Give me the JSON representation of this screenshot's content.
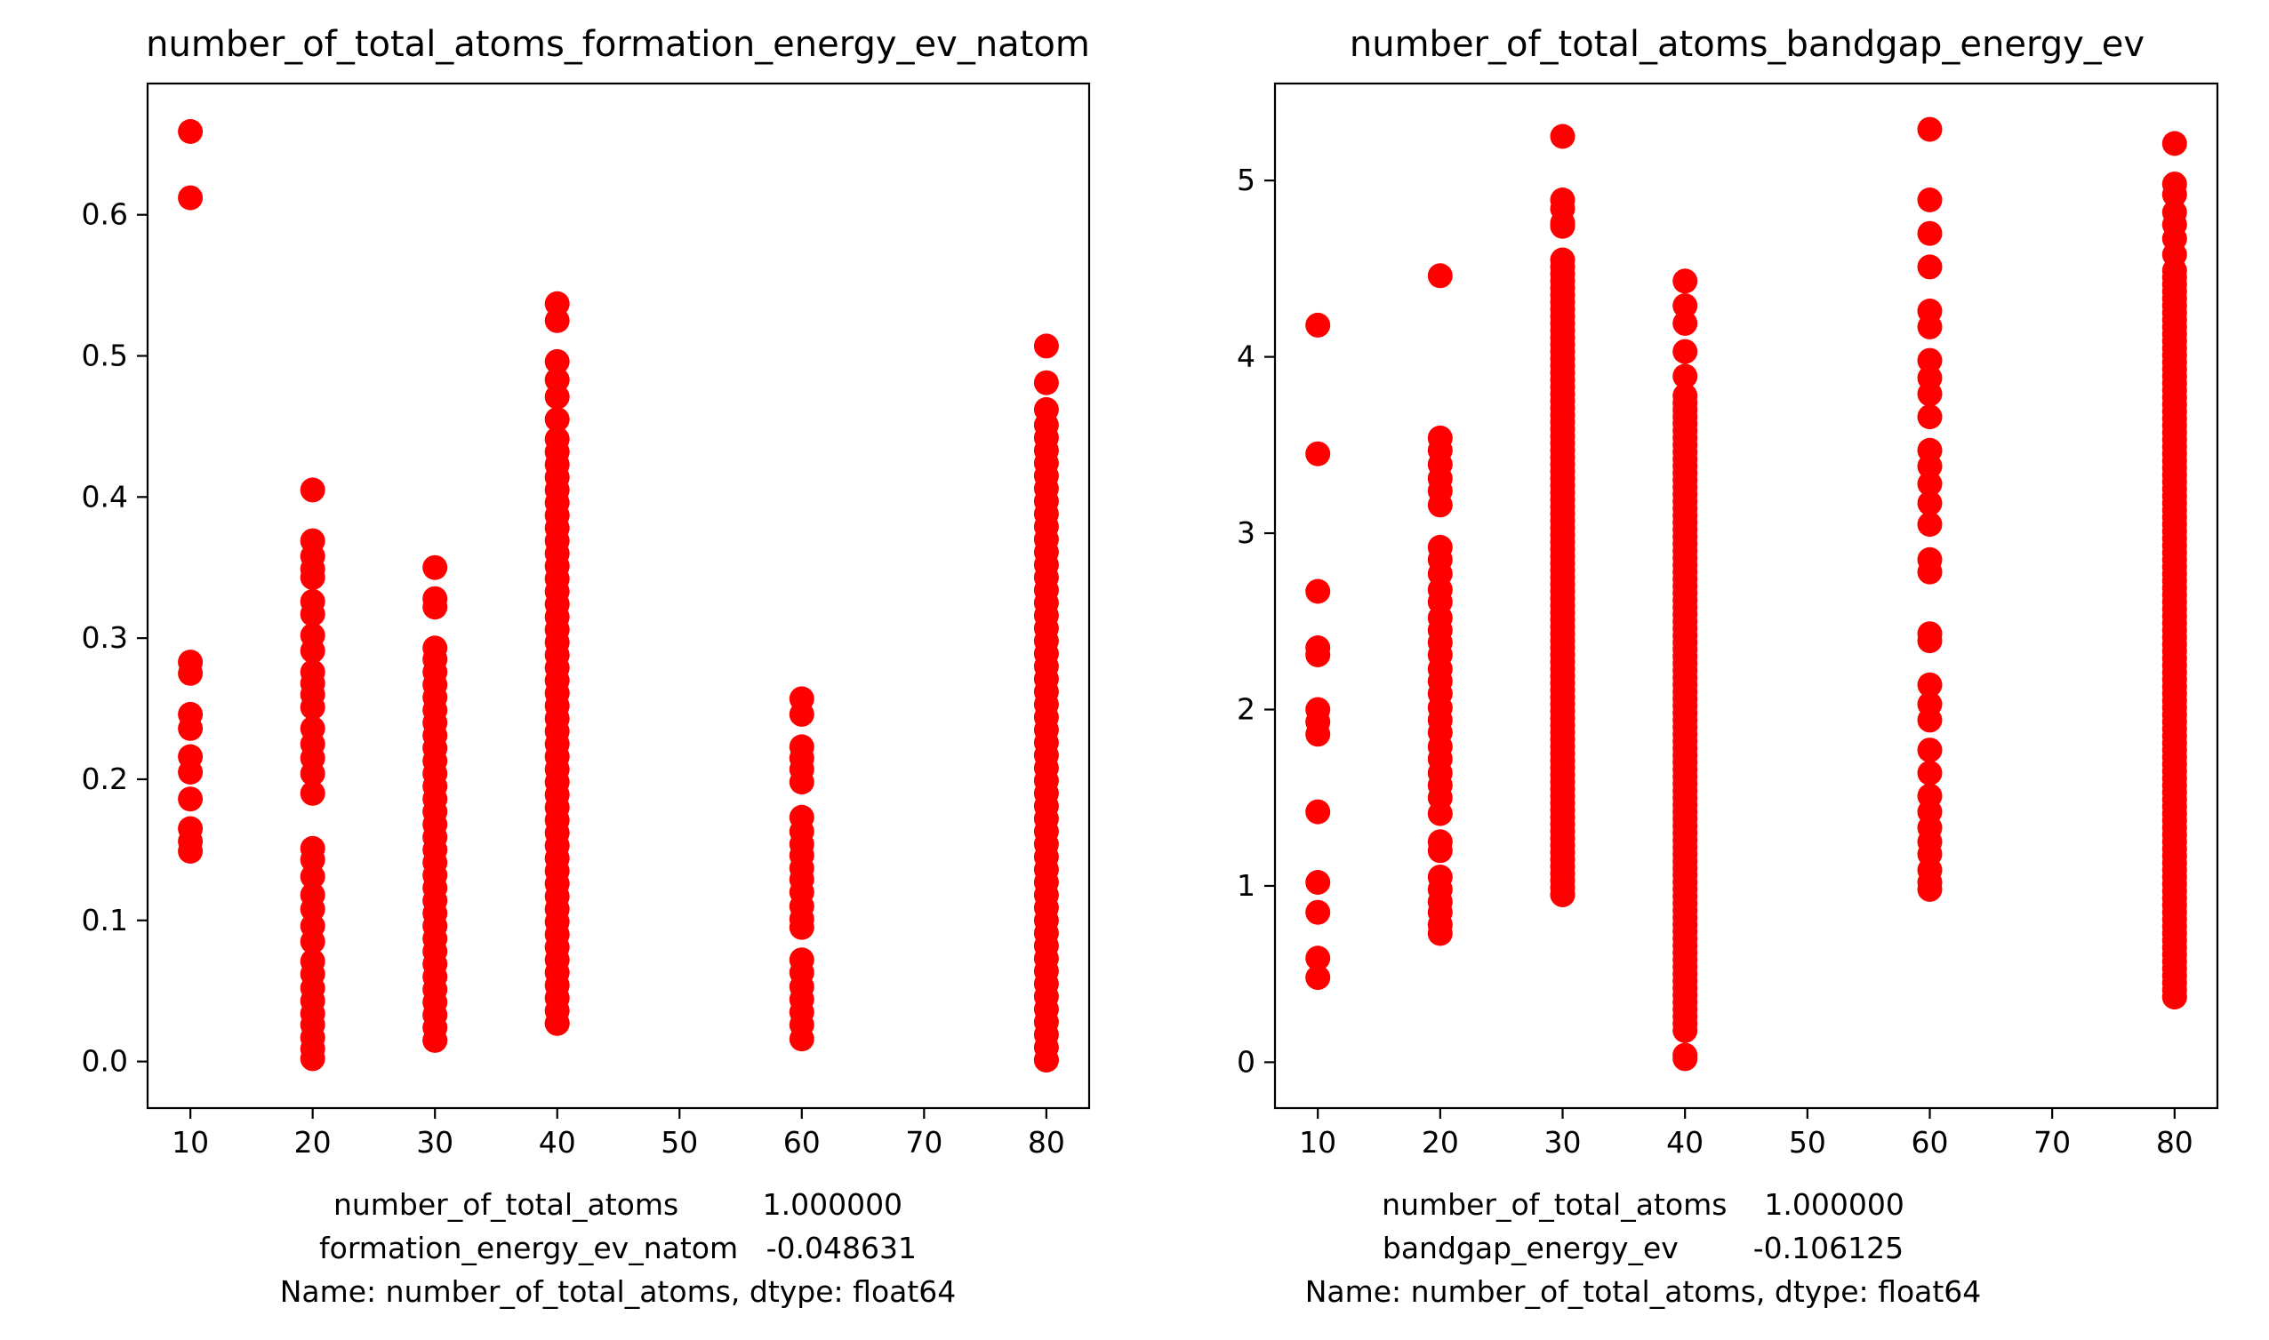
{
  "marker_color": "#ff0000",
  "chart_data": [
    {
      "type": "scatter",
      "title": "number_of_total_atoms_formation_energy_ev_natom",
      "xlabel_lines": [
        "number_of_total_atoms         1.000000",
        "formation_energy_ev_natom   -0.048631",
        "Name: number_of_total_atoms, dtype: float64"
      ],
      "xlim": [
        6.5,
        83.5
      ],
      "ylim": [
        -0.033,
        0.693
      ],
      "xticks": [
        10,
        20,
        30,
        40,
        50,
        60,
        70,
        80
      ],
      "xtick_labels": [
        "10",
        "20",
        "30",
        "40",
        "50",
        "60",
        "70",
        "80"
      ],
      "yticks": [
        0.0,
        0.1,
        0.2,
        0.3,
        0.4,
        0.5,
        0.6
      ],
      "ytick_labels": [
        "0.0",
        "0.1",
        "0.2",
        "0.3",
        "0.4",
        "0.5",
        "0.6"
      ],
      "columns": [
        {
          "x": 10,
          "y": [
            0.659,
            0.612,
            0.283,
            0.275,
            0.246,
            0.236,
            0.216,
            0.205,
            0.186,
            0.165,
            0.156,
            0.149
          ]
        },
        {
          "x": 20,
          "y": [
            0.405,
            0.369,
            0.358,
            0.349,
            0.343,
            0.326,
            0.317,
            0.302,
            0.291,
            0.276,
            0.268,
            0.26,
            0.251,
            0.236,
            0.225,
            0.215,
            0.204,
            0.19,
            0.151,
            0.143,
            0.131,
            0.118,
            0.108,
            0.096,
            0.085,
            0.071,
            0.062,
            0.052,
            0.043,
            0.034,
            0.026,
            0.017,
            0.009,
            0.002
          ]
        },
        {
          "x": 30,
          "y": [
            0.35,
            0.328,
            0.322,
            0.293,
            0.015
          ],
          "range": [
            0.015,
            0.285,
            0.009
          ]
        },
        {
          "x": 40,
          "y": [
            0.537,
            0.525,
            0.496,
            0.483,
            0.471,
            0.455,
            0.027
          ],
          "range": [
            0.027,
            0.445,
            0.009
          ]
        },
        {
          "x": 60,
          "y": [
            0.257,
            0.246,
            0.223,
            0.215,
            0.207,
            0.198,
            0.173,
            0.163,
            0.154,
            0.146,
            0.137,
            0.129,
            0.12,
            0.11,
            0.101,
            0.095,
            0.072,
            0.063,
            0.053,
            0.044,
            0.035,
            0.026,
            0.016
          ]
        },
        {
          "x": 80,
          "y": [
            0.507,
            0.481,
            0.462,
            0.001
          ],
          "range": [
            0.001,
            0.452,
            0.009
          ]
        }
      ]
    },
    {
      "type": "scatter",
      "title": "number_of_total_atoms_bandgap_energy_ev",
      "xlabel_lines": [
        "number_of_total_atoms    1.000000",
        "bandgap_energy_ev        -0.106125",
        "Name: number_of_total_atoms, dtype: float64"
      ],
      "xlim": [
        6.5,
        83.5
      ],
      "ylim": [
        -0.26,
        5.55
      ],
      "xticks": [
        10,
        20,
        30,
        40,
        50,
        60,
        70,
        80
      ],
      "xtick_labels": [
        "10",
        "20",
        "30",
        "40",
        "50",
        "60",
        "70",
        "80"
      ],
      "yticks": [
        0,
        1,
        2,
        3,
        4,
        5
      ],
      "ytick_labels": [
        "0",
        "1",
        "2",
        "3",
        "4",
        "5"
      ],
      "columns": [
        {
          "x": 10,
          "y": [
            4.18,
            3.45,
            2.67,
            2.35,
            2.31,
            2.0,
            1.93,
            1.86,
            1.42,
            1.02,
            0.85,
            0.59,
            0.48
          ]
        },
        {
          "x": 20,
          "y": [
            4.46,
            3.54,
            3.47,
            3.39,
            3.31,
            3.24,
            3.16,
            2.92,
            2.85,
            2.77,
            2.68,
            2.61,
            2.52,
            2.45,
            2.38,
            2.31,
            2.23,
            2.16,
            2.09,
            2.01,
            1.94,
            1.87,
            1.79,
            1.72,
            1.64,
            1.57,
            1.5,
            1.41,
            1.25,
            1.2,
            1.05,
            0.98,
            0.91,
            0.85,
            0.78,
            0.73
          ]
        },
        {
          "x": 30,
          "y": [
            5.25,
            4.89,
            4.84,
            4.76,
            4.74,
            0.95
          ],
          "range": [
            0.95,
            4.55,
            0.04
          ]
        },
        {
          "x": 40,
          "y": [
            4.43,
            4.29,
            4.19,
            4.03,
            3.89,
            0.02,
            0.04
          ],
          "range": [
            0.18,
            3.81,
            0.04
          ]
        },
        {
          "x": 60,
          "y": [
            5.29,
            4.89,
            4.7,
            4.51,
            4.26,
            4.17,
            3.98,
            3.88,
            3.79,
            3.66,
            3.47,
            3.38,
            3.28,
            3.17,
            3.05,
            2.85,
            2.78,
            2.43,
            2.39,
            2.14,
            2.03,
            1.94,
            1.77,
            1.64,
            1.51,
            1.42,
            1.33,
            1.25,
            1.18,
            1.09,
            1.02,
            0.98
          ]
        },
        {
          "x": 80,
          "y": [
            5.21,
            4.98,
            4.92,
            4.82,
            4.75,
            4.67,
            4.58,
            0.37
          ],
          "range": [
            0.37,
            4.5,
            0.04
          ]
        }
      ]
    }
  ]
}
